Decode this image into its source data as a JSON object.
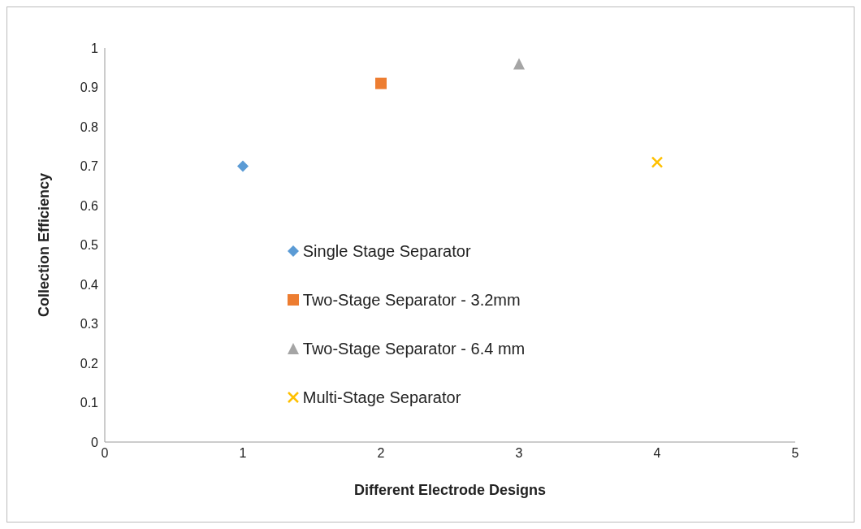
{
  "chart_data": {
    "type": "scatter",
    "xlabel": "Different Electrode Designs",
    "ylabel": "Collection Efficiency",
    "xlim": [
      0,
      5
    ],
    "xticks": [
      0,
      1,
      2,
      3,
      4,
      5
    ],
    "ylim": [
      0,
      1
    ],
    "yticks": [
      0,
      0.1,
      0.2,
      0.3,
      0.4,
      0.5,
      0.6,
      0.7,
      0.8,
      0.9,
      1
    ],
    "grid": false,
    "legend": "center",
    "series": [
      {
        "name": "Single Stage Separator",
        "color": "#5b9bd5",
        "marker": "diamond",
        "x": [
          1
        ],
        "values": [
          0.7
        ]
      },
      {
        "name": "Two-Stage Separator - 3.2mm",
        "color": "#ed7d31",
        "marker": "square",
        "x": [
          2
        ],
        "values": [
          0.91
        ]
      },
      {
        "name": "Two-Stage Separator - 6.4 mm",
        "color": "#a5a5a5",
        "marker": "triangle",
        "x": [
          3
        ],
        "values": [
          0.96
        ]
      },
      {
        "name": "Multi-Stage Separator",
        "color": "#ffc000",
        "marker": "cross",
        "x": [
          4
        ],
        "values": [
          0.71
        ]
      }
    ]
  }
}
